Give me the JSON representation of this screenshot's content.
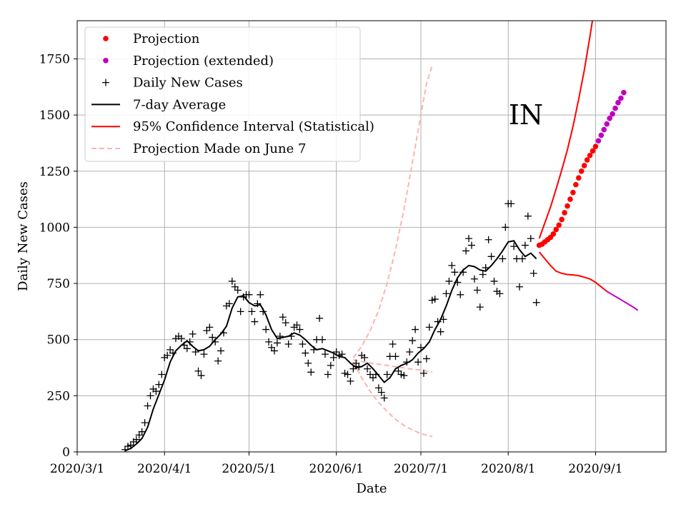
{
  "chart_data": {
    "type": "line",
    "xlabel": "Date",
    "ylabel": "Daily New Cases",
    "annotation": "IN",
    "ylim": [
      0,
      1920
    ],
    "xlim": [
      "2020-03-01",
      "2020-09-26"
    ],
    "x_ticks": [
      "2020/3/1",
      "2020/4/1",
      "2020/5/1",
      "2020/6/1",
      "2020/7/1",
      "2020/8/1",
      "2020/9/1"
    ],
    "y_ticks": [
      "0",
      "250",
      "500",
      "750",
      "1000",
      "1250",
      "1500",
      "1750"
    ],
    "grid": true,
    "legend_position": "top-left",
    "legend": [
      {
        "label": "Projection",
        "marker": "dot",
        "color": "#ff0000"
      },
      {
        "label": "Projection (extended)",
        "marker": "dot",
        "color": "#bf00bf"
      },
      {
        "label": "Daily New Cases",
        "marker": "plus",
        "color": "#000000"
      },
      {
        "label": "7-day Average",
        "marker": "line",
        "color": "#000000"
      },
      {
        "label": "95% Confidence Interval (Statistical)",
        "marker": "line",
        "color": "#ff0000"
      },
      {
        "label": "Projection Made on June 7",
        "marker": "dashed",
        "color": "#ffb2b2"
      }
    ],
    "daily_new_cases": [
      [
        "2020-03-18",
        10
      ],
      [
        "2020-03-19",
        25
      ],
      [
        "2020-03-20",
        30
      ],
      [
        "2020-03-21",
        45
      ],
      [
        "2020-03-22",
        55
      ],
      [
        "2020-03-23",
        75
      ],
      [
        "2020-03-24",
        90
      ],
      [
        "2020-03-25",
        130
      ],
      [
        "2020-03-26",
        205
      ],
      [
        "2020-03-27",
        250
      ],
      [
        "2020-03-28",
        280
      ],
      [
        "2020-03-29",
        270
      ],
      [
        "2020-03-30",
        300
      ],
      [
        "2020-03-31",
        345
      ],
      [
        "2020-04-01",
        420
      ],
      [
        "2020-04-02",
        430
      ],
      [
        "2020-04-03",
        455
      ],
      [
        "2020-04-04",
        440
      ],
      [
        "2020-04-05",
        505
      ],
      [
        "2020-04-06",
        515
      ],
      [
        "2020-04-07",
        505
      ],
      [
        "2020-04-08",
        475
      ],
      [
        "2020-04-09",
        460
      ],
      [
        "2020-04-10",
        490
      ],
      [
        "2020-04-11",
        525
      ],
      [
        "2020-04-12",
        445
      ],
      [
        "2020-04-13",
        360
      ],
      [
        "2020-04-14",
        340
      ],
      [
        "2020-04-15",
        435
      ],
      [
        "2020-04-16",
        540
      ],
      [
        "2020-04-17",
        555
      ],
      [
        "2020-04-18",
        510
      ],
      [
        "2020-04-19",
        490
      ],
      [
        "2020-04-20",
        405
      ],
      [
        "2020-04-21",
        450
      ],
      [
        "2020-04-22",
        530
      ],
      [
        "2020-04-23",
        650
      ],
      [
        "2020-04-24",
        660
      ],
      [
        "2020-04-25",
        760
      ],
      [
        "2020-04-26",
        735
      ],
      [
        "2020-04-27",
        720
      ],
      [
        "2020-04-28",
        625
      ],
      [
        "2020-04-29",
        690
      ],
      [
        "2020-04-30",
        700
      ],
      [
        "2020-05-01",
        700
      ],
      [
        "2020-05-02",
        625
      ],
      [
        "2020-05-03",
        580
      ],
      [
        "2020-05-04",
        660
      ],
      [
        "2020-05-05",
        700
      ],
      [
        "2020-05-06",
        625
      ],
      [
        "2020-05-07",
        545
      ],
      [
        "2020-05-08",
        490
      ],
      [
        "2020-05-09",
        465
      ],
      [
        "2020-05-10",
        450
      ],
      [
        "2020-05-11",
        485
      ],
      [
        "2020-05-12",
        515
      ],
      [
        "2020-05-13",
        600
      ],
      [
        "2020-05-14",
        575
      ],
      [
        "2020-05-15",
        480
      ],
      [
        "2020-05-16",
        515
      ],
      [
        "2020-05-17",
        555
      ],
      [
        "2020-05-18",
        565
      ],
      [
        "2020-05-19",
        545
      ],
      [
        "2020-05-20",
        480
      ],
      [
        "2020-05-21",
        440
      ],
      [
        "2020-05-22",
        395
      ],
      [
        "2020-05-23",
        355
      ],
      [
        "2020-05-24",
        455
      ],
      [
        "2020-05-25",
        500
      ],
      [
        "2020-05-26",
        595
      ],
      [
        "2020-05-27",
        500
      ],
      [
        "2020-05-28",
        435
      ],
      [
        "2020-05-29",
        345
      ],
      [
        "2020-05-30",
        385
      ],
      [
        "2020-05-31",
        420
      ],
      [
        "2020-06-01",
        445
      ],
      [
        "2020-06-02",
        430
      ],
      [
        "2020-06-03",
        435
      ],
      [
        "2020-06-04",
        350
      ],
      [
        "2020-06-05",
        345
      ],
      [
        "2020-06-06",
        315
      ],
      [
        "2020-06-07",
        370
      ],
      [
        "2020-06-08",
        395
      ],
      [
        "2020-06-09",
        380
      ],
      [
        "2020-06-10",
        430
      ],
      [
        "2020-06-11",
        420
      ],
      [
        "2020-06-12",
        370
      ],
      [
        "2020-06-13",
        345
      ],
      [
        "2020-06-14",
        330
      ],
      [
        "2020-06-15",
        345
      ],
      [
        "2020-06-16",
        285
      ],
      [
        "2020-06-17",
        265
      ],
      [
        "2020-06-18",
        240
      ],
      [
        "2020-06-19",
        345
      ],
      [
        "2020-06-20",
        425
      ],
      [
        "2020-06-21",
        480
      ],
      [
        "2020-06-22",
        425
      ],
      [
        "2020-06-23",
        360
      ],
      [
        "2020-06-24",
        345
      ],
      [
        "2020-06-25",
        340
      ],
      [
        "2020-06-26",
        400
      ],
      [
        "2020-06-27",
        445
      ],
      [
        "2020-06-28",
        495
      ],
      [
        "2020-06-29",
        545
      ],
      [
        "2020-06-30",
        400
      ],
      [
        "2020-07-01",
        465
      ],
      [
        "2020-07-02",
        350
      ],
      [
        "2020-07-03",
        415
      ],
      [
        "2020-07-04",
        555
      ],
      [
        "2020-07-05",
        675
      ],
      [
        "2020-07-06",
        680
      ],
      [
        "2020-07-07",
        580
      ],
      [
        "2020-07-08",
        535
      ],
      [
        "2020-07-09",
        590
      ],
      [
        "2020-07-10",
        705
      ],
      [
        "2020-07-11",
        760
      ],
      [
        "2020-07-12",
        830
      ],
      [
        "2020-07-13",
        800
      ],
      [
        "2020-07-14",
        755
      ],
      [
        "2020-07-15",
        700
      ],
      [
        "2020-07-16",
        800
      ],
      [
        "2020-07-17",
        895
      ],
      [
        "2020-07-18",
        950
      ],
      [
        "2020-07-19",
        920
      ],
      [
        "2020-07-20",
        770
      ],
      [
        "2020-07-21",
        720
      ],
      [
        "2020-07-22",
        645
      ],
      [
        "2020-07-23",
        790
      ],
      [
        "2020-07-24",
        820
      ],
      [
        "2020-07-25",
        945
      ],
      [
        "2020-07-26",
        870
      ],
      [
        "2020-07-27",
        760
      ],
      [
        "2020-07-28",
        715
      ],
      [
        "2020-07-29",
        705
      ],
      [
        "2020-07-30",
        860
      ],
      [
        "2020-07-31",
        1000
      ],
      [
        "2020-08-01",
        1105
      ],
      [
        "2020-08-02",
        1105
      ],
      [
        "2020-08-03",
        915
      ],
      [
        "2020-08-04",
        860
      ],
      [
        "2020-08-05",
        735
      ],
      [
        "2020-08-06",
        860
      ],
      [
        "2020-08-07",
        920
      ],
      [
        "2020-08-08",
        1050
      ],
      [
        "2020-08-09",
        950
      ],
      [
        "2020-08-10",
        795
      ],
      [
        "2020-08-11",
        665
      ]
    ],
    "avg_7day": [
      [
        "2020-03-18",
        5
      ],
      [
        "2020-03-20",
        15
      ],
      [
        "2020-03-22",
        35
      ],
      [
        "2020-03-24",
        60
      ],
      [
        "2020-03-26",
        110
      ],
      [
        "2020-03-28",
        190
      ],
      [
        "2020-03-30",
        255
      ],
      [
        "2020-04-01",
        320
      ],
      [
        "2020-04-03",
        400
      ],
      [
        "2020-04-05",
        450
      ],
      [
        "2020-04-07",
        475
      ],
      [
        "2020-04-09",
        495
      ],
      [
        "2020-04-11",
        470
      ],
      [
        "2020-04-13",
        450
      ],
      [
        "2020-04-15",
        455
      ],
      [
        "2020-04-17",
        470
      ],
      [
        "2020-04-19",
        500
      ],
      [
        "2020-04-21",
        525
      ],
      [
        "2020-04-23",
        560
      ],
      [
        "2020-04-25",
        640
      ],
      [
        "2020-04-27",
        690
      ],
      [
        "2020-04-29",
        695
      ],
      [
        "2020-05-01",
        665
      ],
      [
        "2020-05-03",
        650
      ],
      [
        "2020-05-05",
        655
      ],
      [
        "2020-05-07",
        610
      ],
      [
        "2020-05-09",
        545
      ],
      [
        "2020-05-11",
        505
      ],
      [
        "2020-05-13",
        510
      ],
      [
        "2020-05-15",
        515
      ],
      [
        "2020-05-17",
        530
      ],
      [
        "2020-05-19",
        520
      ],
      [
        "2020-05-21",
        500
      ],
      [
        "2020-05-23",
        475
      ],
      [
        "2020-05-25",
        455
      ],
      [
        "2020-05-27",
        460
      ],
      [
        "2020-05-29",
        450
      ],
      [
        "2020-05-31",
        440
      ],
      [
        "2020-06-02",
        425
      ],
      [
        "2020-06-04",
        420
      ],
      [
        "2020-06-06",
        395
      ],
      [
        "2020-06-08",
        375
      ],
      [
        "2020-06-10",
        380
      ],
      [
        "2020-06-12",
        395
      ],
      [
        "2020-06-14",
        370
      ],
      [
        "2020-06-16",
        340
      ],
      [
        "2020-06-18",
        310
      ],
      [
        "2020-06-20",
        330
      ],
      [
        "2020-06-22",
        370
      ],
      [
        "2020-06-24",
        385
      ],
      [
        "2020-06-26",
        395
      ],
      [
        "2020-06-28",
        410
      ],
      [
        "2020-06-30",
        440
      ],
      [
        "2020-07-02",
        460
      ],
      [
        "2020-07-04",
        490
      ],
      [
        "2020-07-06",
        545
      ],
      [
        "2020-07-08",
        590
      ],
      [
        "2020-07-10",
        650
      ],
      [
        "2020-07-12",
        720
      ],
      [
        "2020-07-14",
        775
      ],
      [
        "2020-07-16",
        810
      ],
      [
        "2020-07-18",
        830
      ],
      [
        "2020-07-20",
        825
      ],
      [
        "2020-07-22",
        810
      ],
      [
        "2020-07-24",
        805
      ],
      [
        "2020-07-26",
        830
      ],
      [
        "2020-07-28",
        860
      ],
      [
        "2020-07-30",
        895
      ],
      [
        "2020-08-01",
        935
      ],
      [
        "2020-08-03",
        940
      ],
      [
        "2020-08-05",
        900
      ],
      [
        "2020-08-07",
        870
      ],
      [
        "2020-08-09",
        885
      ],
      [
        "2020-08-11",
        860
      ]
    ],
    "projection": [
      [
        "2020-08-12",
        920
      ],
      [
        "2020-08-13",
        925
      ],
      [
        "2020-08-14",
        935
      ],
      [
        "2020-08-15",
        945
      ],
      [
        "2020-08-16",
        955
      ],
      [
        "2020-08-17",
        970
      ],
      [
        "2020-08-18",
        990
      ],
      [
        "2020-08-19",
        1010
      ],
      [
        "2020-08-20",
        1035
      ],
      [
        "2020-08-21",
        1065
      ],
      [
        "2020-08-22",
        1095
      ],
      [
        "2020-08-23",
        1125
      ],
      [
        "2020-08-24",
        1155
      ],
      [
        "2020-08-25",
        1190
      ],
      [
        "2020-08-26",
        1220
      ],
      [
        "2020-08-27",
        1250
      ],
      [
        "2020-08-28",
        1275
      ],
      [
        "2020-08-29",
        1300
      ],
      [
        "2020-08-30",
        1320
      ],
      [
        "2020-08-31",
        1340
      ],
      [
        "2020-09-01",
        1360
      ]
    ],
    "projection_extended": [
      [
        "2020-09-02",
        1385
      ],
      [
        "2020-09-03",
        1410
      ],
      [
        "2020-09-04",
        1435
      ],
      [
        "2020-09-05",
        1460
      ],
      [
        "2020-09-06",
        1485
      ],
      [
        "2020-09-07",
        1505
      ],
      [
        "2020-09-08",
        1530
      ],
      [
        "2020-09-09",
        1555
      ],
      [
        "2020-09-10",
        1575
      ],
      [
        "2020-09-11",
        1600
      ]
    ],
    "ci_upper": [
      [
        "2020-08-12",
        950
      ],
      [
        "2020-08-14",
        1020
      ],
      [
        "2020-08-16",
        1090
      ],
      [
        "2020-08-18",
        1170
      ],
      [
        "2020-08-20",
        1255
      ],
      [
        "2020-08-22",
        1345
      ],
      [
        "2020-08-24",
        1450
      ],
      [
        "2020-08-26",
        1570
      ],
      [
        "2020-08-28",
        1700
      ],
      [
        "2020-08-30",
        1850
      ],
      [
        "2020-08-31",
        1930
      ]
    ],
    "ci_lower": [
      [
        "2020-08-12",
        890
      ],
      [
        "2020-08-14",
        860
      ],
      [
        "2020-08-16",
        830
      ],
      [
        "2020-08-18",
        805
      ],
      [
        "2020-08-20",
        795
      ],
      [
        "2020-08-22",
        790
      ],
      [
        "2020-08-24",
        788
      ],
      [
        "2020-08-26",
        785
      ],
      [
        "2020-08-28",
        778
      ],
      [
        "2020-08-30",
        770
      ],
      [
        "2020-09-01",
        755
      ],
      [
        "2020-09-03",
        735
      ],
      [
        "2020-09-05",
        715
      ]
    ],
    "ci_lower_extended": [
      [
        "2020-09-05",
        715
      ],
      [
        "2020-09-07",
        700
      ],
      [
        "2020-09-09",
        685
      ],
      [
        "2020-09-11",
        670
      ],
      [
        "2020-09-13",
        655
      ],
      [
        "2020-09-15",
        640
      ],
      [
        "2020-09-16",
        630
      ]
    ],
    "june7_upper": [
      [
        "2020-06-07",
        420
      ],
      [
        "2020-06-10",
        470
      ],
      [
        "2020-06-13",
        540
      ],
      [
        "2020-06-16",
        630
      ],
      [
        "2020-06-19",
        750
      ],
      [
        "2020-06-22",
        900
      ],
      [
        "2020-06-25",
        1080
      ],
      [
        "2020-06-28",
        1290
      ],
      [
        "2020-07-01",
        1500
      ],
      [
        "2020-07-03",
        1640
      ],
      [
        "2020-07-05",
        1720
      ]
    ],
    "june7_mid": [
      [
        "2020-06-07",
        410
      ],
      [
        "2020-06-11",
        400
      ],
      [
        "2020-06-15",
        392
      ],
      [
        "2020-06-19",
        385
      ],
      [
        "2020-06-23",
        378
      ],
      [
        "2020-06-27",
        370
      ],
      [
        "2020-07-01",
        364
      ],
      [
        "2020-07-05",
        356
      ]
    ],
    "june7_lower": [
      [
        "2020-06-07",
        400
      ],
      [
        "2020-06-10",
        330
      ],
      [
        "2020-06-13",
        270
      ],
      [
        "2020-06-16",
        220
      ],
      [
        "2020-06-19",
        180
      ],
      [
        "2020-06-22",
        145
      ],
      [
        "2020-06-25",
        118
      ],
      [
        "2020-06-28",
        97
      ],
      [
        "2020-07-01",
        82
      ],
      [
        "2020-07-05",
        68
      ]
    ],
    "colors": {
      "projection": "#ff0000",
      "projection_extended": "#bf00bf",
      "daily": "#000000",
      "avg": "#000000",
      "ci": "#ff0000",
      "ci_extended": "#bf00bf",
      "june7": "#ffb2b2",
      "grid": "#b0b0b0"
    }
  }
}
